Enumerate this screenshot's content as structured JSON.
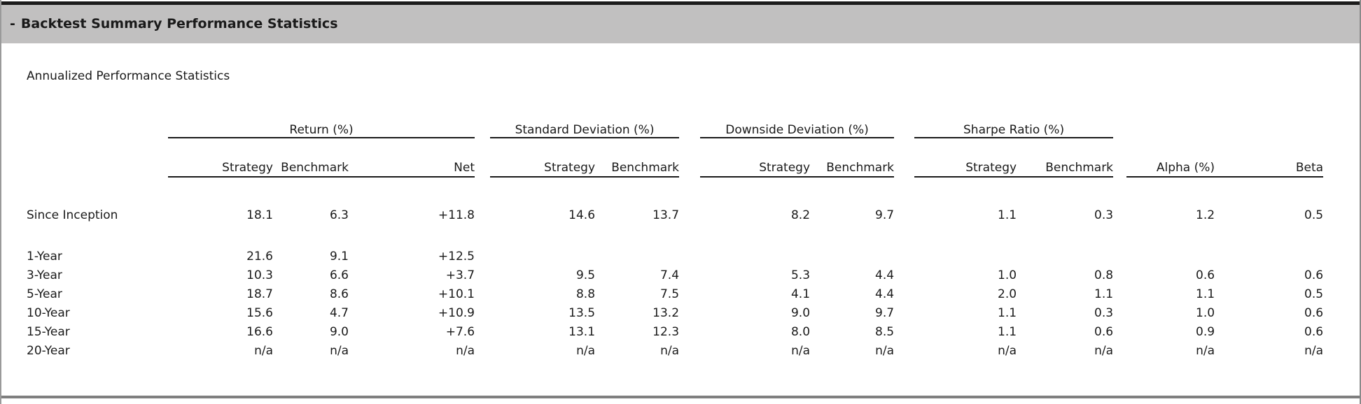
{
  "panel": {
    "header": {
      "collapse_indicator": "-",
      "title": "Backtest Summary Performance Statistics"
    },
    "subtitle": "Annualized Performance Statistics"
  },
  "colors": {
    "header_bar": "#c1c0c0",
    "top_rule": "#1b1b1b",
    "text": "#1a1a1a",
    "underline": "#1a1a1a",
    "side_border": "#9a9a9a",
    "bottom_rule": "#7f7f7f"
  },
  "table": {
    "columns": {
      "groups": [
        {
          "label": "Return (%)",
          "subcolumns": [
            "Strategy",
            "Benchmark",
            "Net"
          ]
        },
        {
          "label": "Standard Deviation (%)",
          "subcolumns": [
            "Strategy",
            "Benchmark"
          ]
        },
        {
          "label": "Downside Deviation (%)",
          "subcolumns": [
            "Strategy",
            "Benchmark"
          ]
        },
        {
          "label": "Sharpe Ratio (%)",
          "subcolumns": [
            "Strategy",
            "Benchmark"
          ]
        }
      ],
      "standalone": [
        "Alpha (%)",
        "Beta"
      ]
    },
    "rows": [
      {
        "label": "Since Inception",
        "values": [
          "18.1",
          "6.3",
          "+11.8",
          "14.6",
          "13.7",
          "8.2",
          "9.7",
          "1.1",
          "0.3",
          "1.2",
          "0.5"
        ]
      },
      {
        "label": "1-Year",
        "values": [
          "21.6",
          "9.1",
          "+12.5",
          "",
          "",
          "",
          "",
          "",
          "",
          "",
          ""
        ]
      },
      {
        "label": "3-Year",
        "values": [
          "10.3",
          "6.6",
          "+3.7",
          "9.5",
          "7.4",
          "5.3",
          "4.4",
          "1.0",
          "0.8",
          "0.6",
          "0.6"
        ]
      },
      {
        "label": "5-Year",
        "values": [
          "18.7",
          "8.6",
          "+10.1",
          "8.8",
          "7.5",
          "4.1",
          "4.4",
          "2.0",
          "1.1",
          "1.1",
          "0.5"
        ]
      },
      {
        "label": "10-Year",
        "values": [
          "15.6",
          "4.7",
          "+10.9",
          "13.5",
          "13.2",
          "9.0",
          "9.7",
          "1.1",
          "0.3",
          "1.0",
          "0.6"
        ]
      },
      {
        "label": "15-Year",
        "values": [
          "16.6",
          "9.0",
          "+7.6",
          "13.1",
          "12.3",
          "8.0",
          "8.5",
          "1.1",
          "0.6",
          "0.9",
          "0.6"
        ]
      },
      {
        "label": "20-Year",
        "values": [
          "n/a",
          "n/a",
          "n/a",
          "n/a",
          "n/a",
          "n/a",
          "n/a",
          "n/a",
          "n/a",
          "n/a",
          "n/a"
        ]
      }
    ]
  }
}
